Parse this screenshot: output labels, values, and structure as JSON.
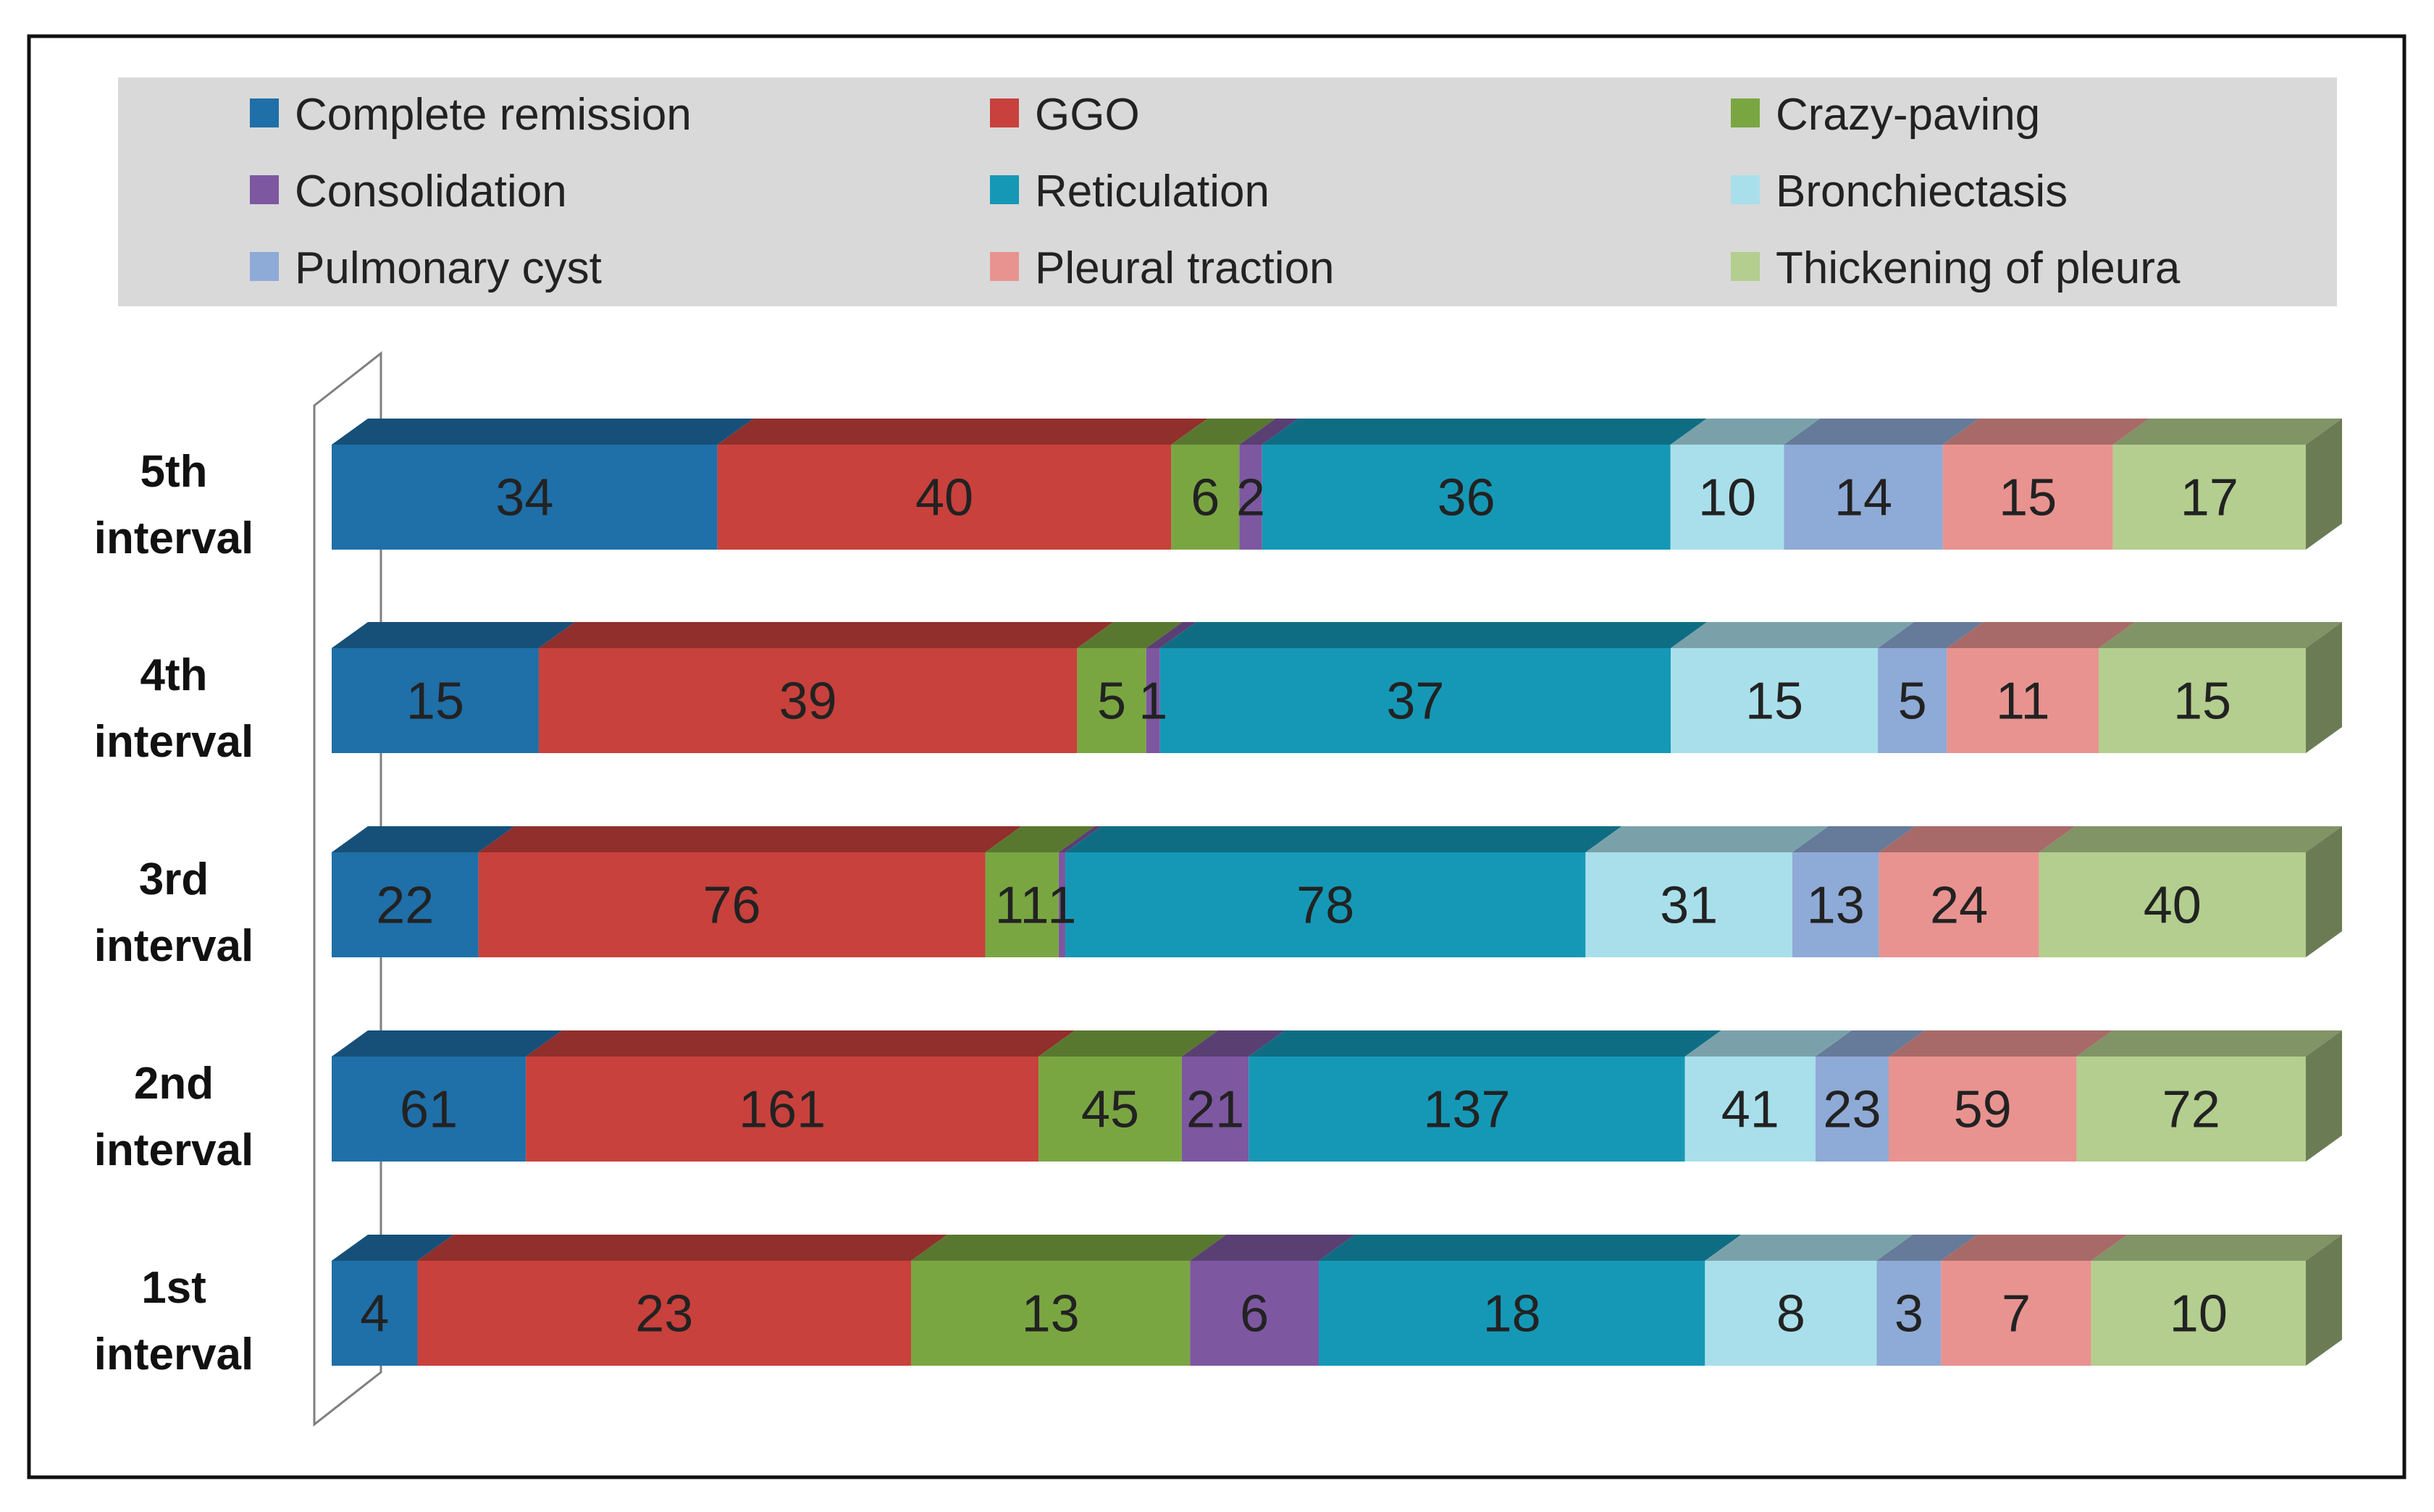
{
  "chart_data": {
    "type": "bar",
    "orientation": "horizontal",
    "stacked": true,
    "style": "3d",
    "legend_position": "top",
    "categories": [
      [
        "5th",
        "interval"
      ],
      [
        "4th",
        "interval"
      ],
      [
        "3rd",
        "interval"
      ],
      [
        "2nd",
        "interval"
      ],
      [
        "1st",
        "interval"
      ]
    ],
    "series": [
      {
        "name": "Complete remission",
        "color": "#1f6fa8",
        "values": [
          34,
          15,
          22,
          61,
          4
        ]
      },
      {
        "name": "GGO",
        "color": "#c8413c",
        "values": [
          40,
          39,
          76,
          161,
          23
        ]
      },
      {
        "name": "Crazy-paving",
        "color": "#7aa642",
        "values": [
          6,
          5,
          11,
          45,
          13
        ]
      },
      {
        "name": "Consolidation",
        "color": "#7d57a0",
        "values": [
          2,
          1,
          1,
          21,
          6
        ]
      },
      {
        "name": "Reticulation",
        "color": "#1598b6",
        "values": [
          36,
          37,
          78,
          137,
          18
        ]
      },
      {
        "name": "Bronchiectasis",
        "color": "#a9dfeb",
        "values": [
          10,
          15,
          31,
          41,
          8
        ]
      },
      {
        "name": "Pulmonary cyst",
        "color": "#8eaad6",
        "values": [
          14,
          5,
          13,
          23,
          3
        ]
      },
      {
        "name": "Pleural traction",
        "color": "#e89390",
        "values": [
          15,
          11,
          24,
          59,
          7
        ]
      },
      {
        "name": "Thickening of pleura",
        "color": "#b3ce8e",
        "values": [
          17,
          15,
          40,
          72,
          10
        ]
      }
    ],
    "title": "",
    "xlabel": "",
    "ylabel": "",
    "grid": false
  }
}
